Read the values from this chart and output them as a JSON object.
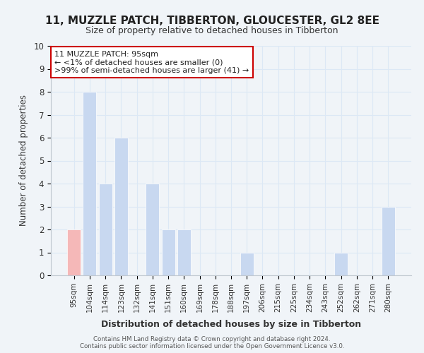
{
  "title": "11, MUZZLE PATCH, TIBBERTON, GLOUCESTER, GL2 8EE",
  "subtitle": "Size of property relative to detached houses in Tibberton",
  "xlabel": "Distribution of detached houses by size in Tibberton",
  "ylabel": "Number of detached properties",
  "bar_color": "#c8d8f0",
  "highlight_bar_color": "#f5b8b8",
  "highlight_index": 0,
  "categories": [
    "95sqm",
    "104sqm",
    "114sqm",
    "123sqm",
    "132sqm",
    "141sqm",
    "151sqm",
    "160sqm",
    "169sqm",
    "178sqm",
    "188sqm",
    "197sqm",
    "206sqm",
    "215sqm",
    "225sqm",
    "234sqm",
    "243sqm",
    "252sqm",
    "262sqm",
    "271sqm",
    "280sqm"
  ],
  "values": [
    2,
    8,
    4,
    6,
    0,
    4,
    2,
    2,
    0,
    0,
    0,
    1,
    0,
    0,
    0,
    0,
    0,
    1,
    0,
    0,
    3
  ],
  "ylim": [
    0,
    10
  ],
  "yticks": [
    0,
    1,
    2,
    3,
    4,
    5,
    6,
    7,
    8,
    9,
    10
  ],
  "annotation_box_text": "11 MUZZLE PATCH: 95sqm\n← <1% of detached houses are smaller (0)\n>99% of semi-detached houses are larger (41) →",
  "footer_line1": "Contains HM Land Registry data © Crown copyright and database right 2024.",
  "footer_line2": "Contains public sector information licensed under the Open Government Licence v3.0.",
  "grid_color": "#dce8f5",
  "background_color": "#f0f4f8"
}
